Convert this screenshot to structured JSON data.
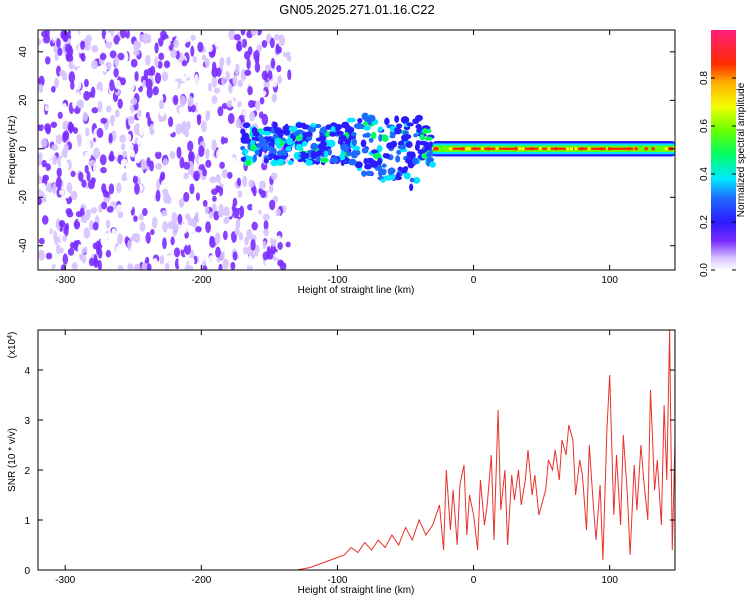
{
  "title": "GN05.2025.271.01.16.C22",
  "chart_data": [
    {
      "type": "heatmap",
      "xlabel": "Height of straight line (km)",
      "ylabel": "Frequency (Hz)",
      "xlim": [
        -320,
        148
      ],
      "ylim": [
        -50,
        49
      ],
      "xticks": [
        -300,
        -200,
        -100,
        0,
        100
      ],
      "yticks": [
        -40,
        -20,
        0,
        20,
        40
      ],
      "colorbar": {
        "label": "Normalized spectral amplitude",
        "range": [
          0,
          1
        ],
        "ticks": [
          0.0,
          0.2,
          0.4,
          0.6,
          0.8
        ]
      },
      "regions": [
        {
          "name": "noise-only",
          "x_from": -320,
          "x_to": -135,
          "freq_range": [
            -50,
            49
          ],
          "amplitude": "low (0.0-0.15)"
        },
        {
          "name": "scintillation",
          "x_from": -170,
          "x_to": -30,
          "freq_center": 2,
          "freq_spread": 8,
          "amplitude": "0.2-0.5"
        },
        {
          "name": "stable carrier",
          "x_from": -30,
          "x_to": 148,
          "freq_center": 0,
          "freq_spread": 2,
          "amplitude": "up to 1.0"
        }
      ]
    },
    {
      "type": "line",
      "xlabel": "Height of straight line (km)",
      "ylabel": "SNR (10 * v/v)",
      "scale_label": "(x10",
      "scale_exponent": "4",
      "scale_close": ")",
      "xlim": [
        -320,
        148
      ],
      "ylim": [
        0,
        4.8
      ],
      "xticks": [
        -300,
        -200,
        -100,
        0,
        100
      ],
      "yticks": [
        0,
        1,
        2,
        3,
        4
      ],
      "series": [
        {
          "name": "SNR",
          "color": "#e8322a",
          "x": [
            -320,
            -130,
            -120,
            -110,
            -100,
            -95,
            -90,
            -85,
            -80,
            -75,
            -70,
            -65,
            -60,
            -55,
            -50,
            -45,
            -40,
            -35,
            -30,
            -25,
            -22,
            -20,
            -17,
            -15,
            -12,
            -10,
            -7,
            -5,
            -3,
            0,
            3,
            5,
            8,
            10,
            13,
            15,
            18,
            20,
            23,
            25,
            28,
            30,
            33,
            35,
            38,
            40,
            43,
            45,
            48,
            50,
            53,
            55,
            58,
            60,
            63,
            65,
            68,
            70,
            73,
            75,
            78,
            80,
            83,
            85,
            88,
            90,
            93,
            95,
            98,
            100,
            103,
            105,
            108,
            110,
            113,
            115,
            118,
            120,
            123,
            125,
            128,
            130,
            133,
            135,
            138,
            140,
            142,
            144,
            146,
            148
          ],
          "values": [
            0.0,
            0.0,
            0.05,
            0.15,
            0.25,
            0.3,
            0.45,
            0.35,
            0.55,
            0.4,
            0.6,
            0.45,
            0.7,
            0.5,
            0.85,
            0.6,
            1.0,
            0.7,
            0.9,
            1.3,
            0.4,
            2.0,
            0.8,
            1.6,
            0.5,
            1.7,
            2.1,
            0.7,
            1.5,
            1.1,
            0.4,
            1.8,
            0.9,
            1.3,
            2.3,
            0.6,
            3.2,
            1.2,
            2.0,
            0.5,
            1.9,
            1.4,
            2.0,
            1.3,
            1.8,
            2.4,
            1.5,
            1.9,
            1.1,
            1.3,
            1.6,
            2.2,
            2.0,
            2.4,
            1.8,
            2.6,
            2.3,
            2.9,
            2.6,
            1.5,
            2.2,
            1.9,
            0.8,
            2.5,
            1.3,
            0.6,
            1.7,
            0.2,
            2.8,
            3.9,
            1.1,
            2.3,
            0.9,
            2.7,
            1.5,
            0.3,
            2.1,
            1.2,
            2.5,
            1.8,
            1.0,
            3.6,
            1.6,
            2.2,
            0.9,
            3.3,
            1.8,
            4.8,
            0.4,
            2.6
          ]
        }
      ]
    }
  ]
}
